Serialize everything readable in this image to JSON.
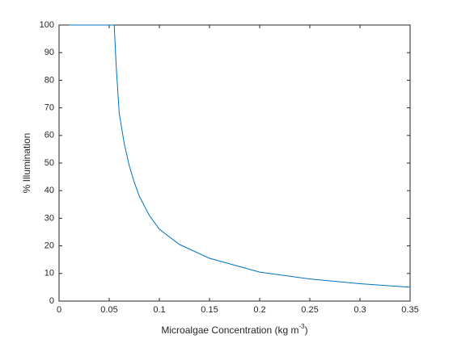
{
  "chart_data": {
    "type": "line",
    "x_label": "Microalgae Concentration (kg m",
    "x_label_sup": "-3",
    "x_label_end": ")",
    "y_label": "% Illumination",
    "x": [
      0.01,
      0.055,
      0.057,
      0.06,
      0.065,
      0.07,
      0.075,
      0.08,
      0.09,
      0.1,
      0.12,
      0.15,
      0.2,
      0.25,
      0.3,
      0.35
    ],
    "series": [
      {
        "color": "#0072bd",
        "values": [
          100,
          100,
          85,
          68,
          57,
          49,
          43,
          38,
          31,
          26,
          20.5,
          15.5,
          10.5,
          8,
          6.3,
          5
        ]
      }
    ],
    "xlim": [
      0,
      0.35
    ],
    "ylim": [
      0,
      100
    ],
    "xticks": [
      0,
      0.05,
      0.1,
      0.15,
      0.2,
      0.25,
      0.3,
      0.35
    ],
    "yticks": [
      0,
      10,
      20,
      30,
      40,
      50,
      60,
      70,
      80,
      90,
      100
    ],
    "grid": false,
    "box": true
  }
}
